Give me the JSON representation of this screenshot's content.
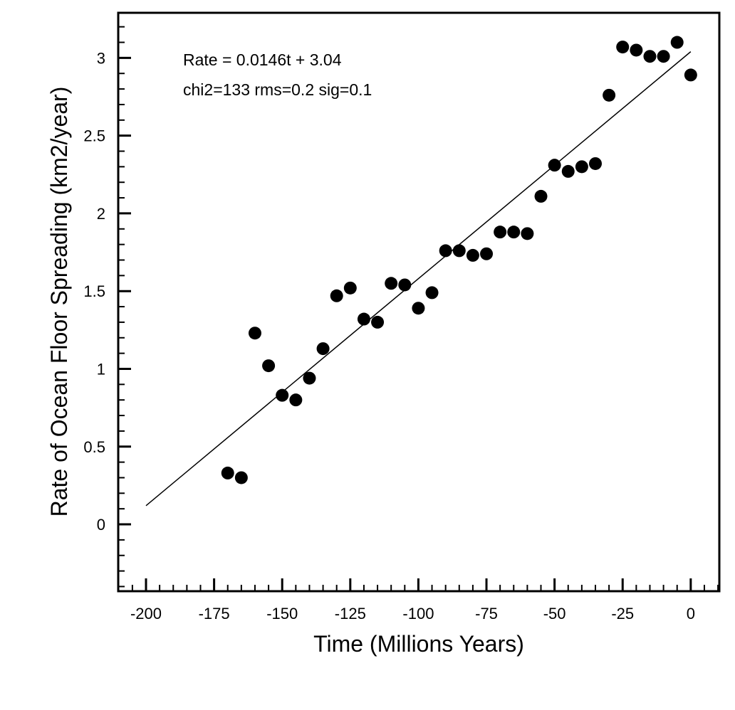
{
  "chart_data": {
    "type": "scatter",
    "title": "",
    "xlabel": "Time (Millions Years)",
    "ylabel": "Rate of Ocean Floor Spreading (km2/year)",
    "xlim": [
      -210.2,
      10.5
    ],
    "ylim": [
      -0.43,
      3.29
    ],
    "x_ticks": [
      -200,
      -175,
      -150,
      -125,
      -100,
      -75,
      -50,
      -25,
      0
    ],
    "x_tick_labels": [
      "-200",
      "-175",
      "-150",
      "-125",
      "-100",
      "-75",
      "-50",
      "-25",
      "0"
    ],
    "y_ticks": [
      0,
      0.5,
      1,
      1.5,
      2,
      2.5,
      3
    ],
    "y_tick_labels": [
      "0",
      "0.5",
      "1",
      "1.5",
      "2",
      "2.5",
      "3"
    ],
    "x_minor_step": 5,
    "y_minor_step": 0.1,
    "grid": false,
    "marker_color": "#000000",
    "annotations": [
      "Rate = 0.0146t + 3.04",
      "chi2=133 rms=0.2 sig=0.1"
    ],
    "fit_line": {
      "slope": 0.0146,
      "intercept": 3.04,
      "x_range": [
        -200,
        0
      ]
    },
    "points": {
      "x": [
        -170,
        -165,
        -160,
        -155,
        -150,
        -145,
        -140,
        -135,
        -130,
        -125,
        -120,
        -115,
        -110,
        -105,
        -100,
        -95,
        -90,
        -85,
        -80,
        -75,
        -70,
        -65,
        -60,
        -55,
        -50,
        -45,
        -40,
        -35,
        -30,
        -25,
        -20,
        -15,
        -10,
        -5,
        0
      ],
      "y": [
        0.33,
        0.3,
        1.23,
        1.02,
        0.83,
        0.8,
        0.94,
        1.13,
        1.47,
        1.52,
        1.32,
        1.3,
        1.55,
        1.54,
        1.39,
        1.49,
        1.76,
        1.76,
        1.73,
        1.74,
        1.88,
        1.88,
        1.87,
        2.11,
        2.31,
        2.27,
        2.3,
        2.32,
        2.76,
        3.07,
        3.05,
        3.01,
        3.01,
        3.1,
        2.89
      ]
    }
  }
}
